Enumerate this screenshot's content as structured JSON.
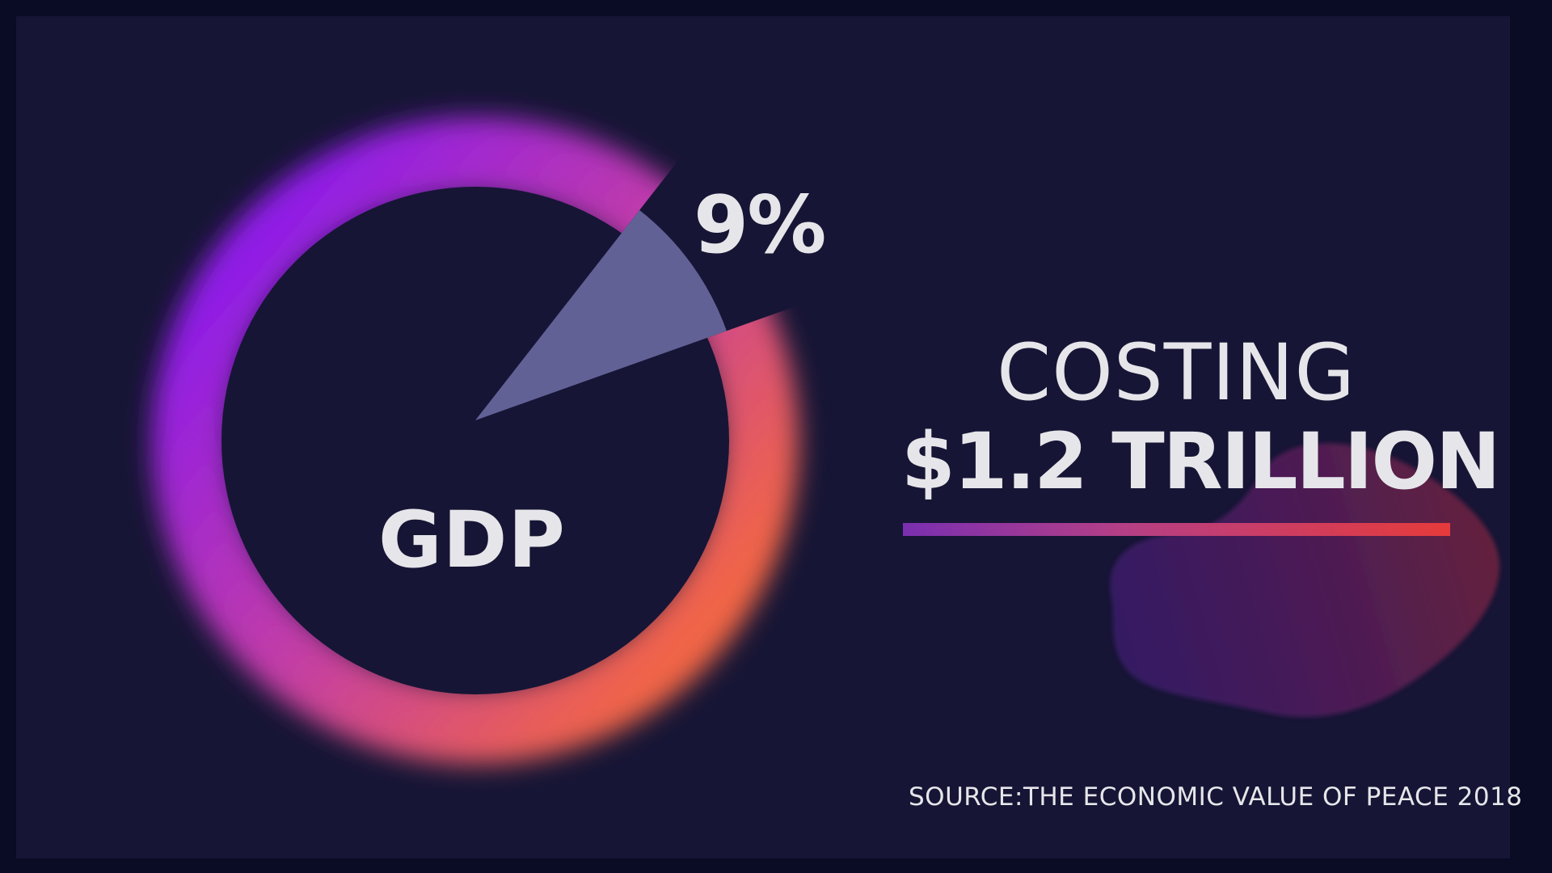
{
  "chart_data": {
    "type": "pie",
    "slices": [
      {
        "label": "GDP",
        "value": 91
      },
      {
        "label": "9%",
        "value": 9
      }
    ],
    "center_label": "GDP",
    "slice_label": "9%",
    "colors": {
      "ring_start": "#8f1de6",
      "ring_mid": "#c23da6",
      "ring_end": "#f26645",
      "slice": "#626196",
      "center": "#161535"
    }
  },
  "headline": {
    "costing": "COSTING",
    "amount": "$1.2 TRILLION"
  },
  "source": "SOURCE:THE ECONOMIC VALUE OF PEACE 2018",
  "colors": {
    "background": "#161535",
    "border": "#0a0b24",
    "text": "#e6e6ea",
    "underline_start": "#7a2fb0",
    "underline_end": "#e63b3b"
  }
}
